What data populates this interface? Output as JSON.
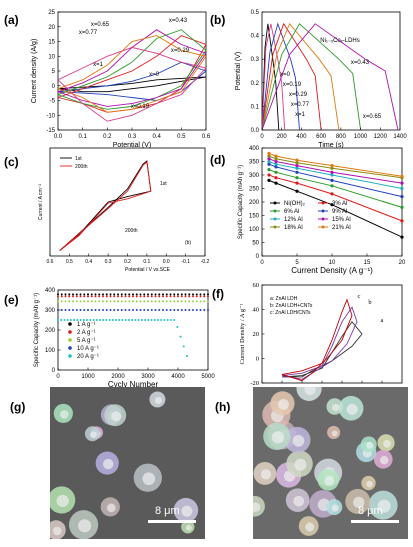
{
  "panels": {
    "a": "(a)",
    "b": "(b)",
    "c": "(c)",
    "d": "(d)",
    "e": "(e)",
    "f": "(f)",
    "g": "(g)",
    "h": "(h)"
  },
  "chart_data": [
    {
      "id": "a",
      "type": "line",
      "xlabel": "Potential (V)",
      "ylabel": "Current density (A/g)",
      "xlim": [
        0.0,
        0.6
      ],
      "ylim": [
        -15,
        25
      ],
      "xticks": [
        "0.0",
        "0.1",
        "0.2",
        "0.3",
        "0.4",
        "0.5",
        "0.6"
      ],
      "yticks": [
        "-15",
        "-10",
        "-5",
        "0",
        "5",
        "10",
        "15",
        "20",
        "25"
      ],
      "labels": [
        "x=0.65",
        "x=0.43",
        "x=0.77",
        "x=0.29",
        "x=1",
        "x=0",
        "x=0.19"
      ],
      "series": [
        {
          "name": "x=0",
          "color": "#000000",
          "x": [
            0,
            0.1,
            0.2,
            0.3,
            0.4,
            0.5,
            0.6,
            0.5,
            0.4,
            0.3,
            0.2,
            0.1,
            0
          ],
          "y": [
            -1,
            -0.5,
            0,
            0.8,
            2,
            2.5,
            3,
            1.5,
            0,
            -1,
            -2,
            -2,
            -1
          ]
        },
        {
          "name": "x=0.19",
          "color": "#1f3fbf",
          "x": [
            0,
            0.1,
            0.2,
            0.3,
            0.4,
            0.5,
            0.6,
            0.5,
            0.4,
            0.3,
            0.2,
            0.1,
            0
          ],
          "y": [
            -2,
            -1,
            0,
            1.5,
            4,
            8,
            5,
            -2,
            -5,
            -4,
            -3,
            -2.5,
            -2
          ]
        },
        {
          "name": "x=0.29",
          "color": "#e01a1a",
          "x": [
            0,
            0.1,
            0.2,
            0.3,
            0.4,
            0.5,
            0.6,
            0.5,
            0.4,
            0.3,
            0.2,
            0.1,
            0
          ],
          "y": [
            -4,
            -1,
            2,
            5,
            10,
            17,
            14,
            -1,
            -6,
            -8,
            -9,
            -6,
            -4
          ]
        },
        {
          "name": "x=0.43",
          "color": "#2a9a2a",
          "x": [
            0,
            0.1,
            0.2,
            0.3,
            0.4,
            0.5,
            0.6,
            0.5,
            0.4,
            0.3,
            0.2,
            0.1,
            0
          ],
          "y": [
            -3,
            0,
            3,
            8,
            16,
            19,
            12,
            0,
            -4,
            -7,
            -8,
            -6,
            -3
          ]
        },
        {
          "name": "x=0.65",
          "color": "#b010b0",
          "x": [
            0,
            0.1,
            0.2,
            0.3,
            0.4,
            0.5,
            0.6,
            0.5,
            0.4,
            0.3,
            0.2,
            0.1,
            0
          ],
          "y": [
            -2,
            1,
            5,
            13,
            19,
            14,
            11,
            -1,
            -4,
            -6,
            -7,
            -5,
            -2
          ]
        },
        {
          "name": "x=0.77",
          "color": "#e07a10",
          "x": [
            0,
            0.1,
            0.2,
            0.3,
            0.4,
            0.5,
            0.6,
            0.5,
            0.4,
            0.3,
            0.2,
            0.1,
            0
          ],
          "y": [
            -1,
            2,
            7,
            15,
            17,
            12,
            10,
            -2,
            -5,
            -8,
            -9,
            -4,
            -1
          ]
        },
        {
          "name": "x=1",
          "color": "#d93c8c",
          "x": [
            0,
            0.1,
            0.2,
            0.3,
            0.4,
            0.5,
            0.6,
            0.5,
            0.4,
            0.3,
            0.2,
            0.1,
            0
          ],
          "y": [
            2,
            6,
            10,
            13,
            11,
            8,
            6,
            -3,
            -6,
            -10,
            -12,
            -6,
            2
          ]
        }
      ]
    },
    {
      "id": "b",
      "type": "line",
      "xlabel": "Time (s)",
      "ylabel": "Potential (V)",
      "legend": "Ni₁₋ₓCoₓ-LDHs",
      "xlim": [
        0,
        1400
      ],
      "ylim": [
        0.0,
        0.5
      ],
      "xticks": [
        "0",
        "200",
        "400",
        "600",
        "800",
        "1000",
        "1200",
        "1400"
      ],
      "yticks": [
        "0.0",
        "0.1",
        "0.2",
        "0.3",
        "0.4",
        "0.5"
      ],
      "labels": [
        "x=0.43",
        "x=0.65",
        "x=0",
        "x=0.19",
        "x=0.29",
        "x=0.77",
        "x=1"
      ],
      "series": [
        {
          "name": "x=0",
          "color": "#000000",
          "x": [
            0,
            30,
            60,
            110,
            140,
            170
          ],
          "y": [
            0,
            0.35,
            0.45,
            0.3,
            0.2,
            0
          ]
        },
        {
          "name": "x=1",
          "color": "#d93c8c",
          "x": [
            0,
            40,
            90,
            160,
            200,
            230
          ],
          "y": [
            0,
            0.35,
            0.45,
            0.3,
            0.2,
            0
          ]
        },
        {
          "name": "x=0.19",
          "color": "#1f3fbf",
          "x": [
            0,
            80,
            160,
            290,
            340,
            380
          ],
          "y": [
            0,
            0.33,
            0.45,
            0.3,
            0.22,
            0
          ]
        },
        {
          "name": "x=0.29",
          "color": "#e01a1a",
          "x": [
            0,
            110,
            220,
            450,
            540,
            600
          ],
          "y": [
            0,
            0.32,
            0.45,
            0.3,
            0.23,
            0
          ]
        },
        {
          "name": "x=0.77",
          "color": "#e07a10",
          "x": [
            0,
            150,
            280,
            580,
            700,
            780
          ],
          "y": [
            0,
            0.32,
            0.45,
            0.3,
            0.23,
            0
          ]
        },
        {
          "name": "x=0.43",
          "color": "#2a9a2a",
          "x": [
            0,
            200,
            380,
            780,
            920,
            1000
          ],
          "y": [
            0,
            0.32,
            0.45,
            0.3,
            0.24,
            0
          ]
        },
        {
          "name": "x=0.65",
          "color": "#b010b0",
          "x": [
            0,
            280,
            540,
            1050,
            1250,
            1380
          ],
          "y": [
            0,
            0.32,
            0.45,
            0.3,
            0.25,
            0
          ]
        }
      ]
    },
    {
      "id": "c",
      "type": "line",
      "xlabel": "Potential / V vs.SCE",
      "ylabel": "Current / A cm⁻²",
      "xlim": [
        0.6,
        -0.2
      ],
      "ylim": [
        0,
        1
      ],
      "xticks": [
        "0.6",
        "0.5",
        "0.4",
        "0.3",
        "0.2",
        "0.1",
        "0.0",
        "-0.1",
        "-0.2"
      ],
      "legend": [
        "1st",
        "200th"
      ],
      "labels": [
        "1st",
        "200th",
        "(b)"
      ],
      "series": [
        {
          "name": "1st",
          "color": "#000000",
          "x": [
            0.55,
            0.3,
            0.2,
            0.12,
            0.1,
            0.08,
            0.2,
            0.3,
            0.45,
            0.55
          ],
          "y": [
            0.05,
            0.45,
            0.62,
            0.85,
            0.88,
            0.6,
            0.55,
            0.5,
            0.2,
            0.05
          ]
        },
        {
          "name": "200th",
          "color": "#e01a1a",
          "x": [
            0.55,
            0.3,
            0.2,
            0.12,
            0.1,
            0.08,
            0.2,
            0.3,
            0.45,
            0.55
          ],
          "y": [
            0.05,
            0.44,
            0.6,
            0.84,
            0.87,
            0.6,
            0.53,
            0.49,
            0.19,
            0.05
          ]
        }
      ]
    },
    {
      "id": "d",
      "type": "line",
      "xlabel": "Current Density (A g⁻¹)",
      "ylabel": "Specific Capacity (mAh g⁻¹)",
      "xlim": [
        0,
        20
      ],
      "ylim": [
        0,
        400
      ],
      "xticks": [
        "0",
        "5",
        "10",
        "15",
        "20"
      ],
      "yticks": [
        "0",
        "50",
        "100",
        "150",
        "200",
        "250",
        "300",
        "350",
        "400"
      ],
      "x": [
        1,
        2,
        5,
        10,
        20
      ],
      "series": [
        {
          "name": "Ni(OH)₂",
          "color": "#000000",
          "values": [
            280,
            270,
            240,
            190,
            70
          ]
        },
        {
          "name": "3% Al",
          "color": "#e01a1a",
          "values": [
            300,
            290,
            270,
            230,
            130
          ]
        },
        {
          "name": "6% Al",
          "color": "#2a9a2a",
          "values": [
            320,
            310,
            290,
            260,
            180
          ]
        },
        {
          "name": "9% Al",
          "color": "#1f3fbf",
          "values": [
            340,
            330,
            310,
            280,
            220
          ]
        },
        {
          "name": "12% Al",
          "color": "#20b0c0",
          "values": [
            350,
            340,
            325,
            300,
            250
          ]
        },
        {
          "name": "15% Al",
          "color": "#b010b0",
          "values": [
            360,
            350,
            335,
            310,
            270
          ]
        },
        {
          "name": "18% Al",
          "color": "#8a8a10",
          "values": [
            370,
            360,
            345,
            325,
            290
          ]
        },
        {
          "name": "21% Al",
          "color": "#e07a10",
          "values": [
            380,
            370,
            355,
            335,
            295
          ]
        }
      ]
    },
    {
      "id": "e",
      "type": "scatter",
      "xlabel": "Cycly Number",
      "ylabel": "Specific Capacity (mAh g⁻¹)",
      "xlim": [
        0,
        5000
      ],
      "ylim": [
        0,
        400
      ],
      "xticks": [
        "0",
        "1000",
        "2000",
        "3000",
        "4000",
        "5000"
      ],
      "yticks": [
        "0",
        "100",
        "200",
        "300",
        "400"
      ],
      "series": [
        {
          "name": "1 A g⁻¹",
          "color": "#000000",
          "level": 378,
          "end": 5000
        },
        {
          "name": "2 A g⁻¹",
          "color": "#e01a1a",
          "level": 368,
          "end": 5000
        },
        {
          "name": "5 A g⁻¹",
          "color": "#9acd32",
          "level": 343,
          "end": 5000
        },
        {
          "name": "10 A g⁻¹",
          "color": "#1f3fbf",
          "level": 300,
          "end": 5000
        },
        {
          "name": "20 A g⁻¹",
          "color": "#20c0c0",
          "level": 250,
          "end": 4300
        }
      ]
    },
    {
      "id": "f",
      "type": "line",
      "xlabel": "E vs (Hg/HgO) / V",
      "ylabel": "Current Density / A g⁻¹",
      "xlim": [
        -2.0,
        -0.6
      ],
      "ylim": [
        -20,
        60
      ],
      "xticks": [
        "-2.0",
        "-1.8",
        "-1.6",
        "-1.4",
        "-1.2",
        "-1.0",
        "-0.8"
      ],
      "yticks": [
        "-20",
        "0",
        "20",
        "40",
        "60"
      ],
      "legend": [
        "a: ZnAl LDH",
        "b: ZnAl LDH+CNTs",
        "c: ZnAl LDH/CNTs"
      ],
      "labels": [
        "a",
        "b",
        "c"
      ],
      "series": [
        {
          "name": "a",
          "color": "#333333",
          "x": [
            -1.8,
            -1.6,
            -1.4,
            -1.3,
            -1.2,
            -1.1,
            -1.0,
            -1.1,
            -1.3,
            -1.5,
            -1.6,
            -1.8
          ],
          "y": [
            -15,
            -14,
            -8,
            5,
            18,
            30,
            20,
            10,
            -2,
            -10,
            -15,
            -15
          ]
        },
        {
          "name": "b",
          "color": "#7a3aa8",
          "x": [
            -1.8,
            -1.6,
            -1.4,
            -1.3,
            -1.2,
            -1.1,
            -1.05,
            -1.15,
            -1.3,
            -1.5,
            -1.6,
            -1.8
          ],
          "y": [
            -14,
            -12,
            -6,
            10,
            30,
            42,
            30,
            12,
            -2,
            -12,
            -17,
            -14
          ]
        },
        {
          "name": "c",
          "color": "#c00000",
          "x": [
            -1.8,
            -1.6,
            -1.4,
            -1.3,
            -1.2,
            -1.15,
            -1.1,
            -1.2,
            -1.35,
            -1.5,
            -1.6,
            -1.8
          ],
          "y": [
            -13,
            -10,
            -4,
            15,
            38,
            48,
            35,
            15,
            0,
            -12,
            -18,
            -13
          ]
        }
      ]
    }
  ],
  "sem_g": {
    "scale": "8 μm"
  },
  "sem_h": {
    "scale": "8 μm"
  }
}
